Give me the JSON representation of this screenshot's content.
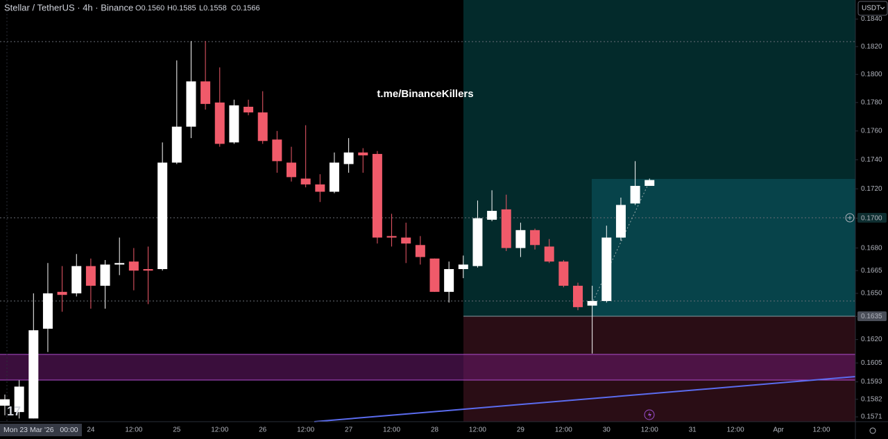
{
  "chart_data": {
    "type": "candlestick",
    "title": "Stellar / TetherUS · 4h · Binance",
    "ohlc_legend": [
      "O0.1560",
      "H0.1585",
      "L0.1558",
      "C0.1566"
    ],
    "watermark": "t.me/BinanceKillers",
    "currency": "USDT",
    "log_scale": true,
    "up_color": "#ffffff",
    "down_color": "#f05a6a",
    "ylim": [
      0.1568,
      0.1854
    ],
    "yticks": [
      {
        "value": 0.184,
        "label": "0.1840"
      },
      {
        "value": 0.182,
        "label": "0.1820"
      },
      {
        "value": 0.18,
        "label": "0.1800"
      },
      {
        "value": 0.178,
        "label": "0.1780"
      },
      {
        "value": 0.176,
        "label": "0.1760"
      },
      {
        "value": 0.174,
        "label": "0.1740"
      },
      {
        "value": 0.172,
        "label": "0.1720"
      },
      {
        "value": 0.17,
        "label": "0.1700"
      },
      {
        "value": 0.168,
        "label": "0.1680"
      },
      {
        "value": 0.1665,
        "label": "0.1665"
      },
      {
        "value": 0.165,
        "label": "0.1650"
      },
      {
        "value": 0.1635,
        "label": "0.1635"
      },
      {
        "value": 0.162,
        "label": "0.1620"
      },
      {
        "value": 0.1605,
        "label": "0.1605"
      },
      {
        "value": 0.1593,
        "label": "0.1593"
      },
      {
        "value": 0.1582,
        "label": "0.1582"
      },
      {
        "value": 0.1571,
        "label": "0.1571"
      }
    ],
    "crosshair_x_label": "Mon 23 Mar '26   00:00",
    "xtick_labels": [
      "24",
      "12:00",
      "25",
      "12:00",
      "26",
      "12:00",
      "27",
      "12:00",
      "28",
      "12:00",
      "29",
      "12:00",
      "30",
      "12:00",
      "31",
      "12:00",
      "Apr",
      "12:00"
    ],
    "open": [
      0.1578,
      0.1574,
      0.157,
      0.1627,
      0.1651,
      0.165,
      0.1668,
      0.1655,
      0.1669,
      0.1671,
      0.1666,
      0.1666,
      0.1738,
      0.1763,
      0.1795,
      0.178,
      0.1752,
      0.1777,
      0.1773,
      0.1754,
      0.1738,
      0.1727,
      0.1723,
      0.1718,
      0.1737,
      0.1745,
      0.1744,
      0.1688,
      0.1687,
      0.1682,
      0.1673,
      0.1651,
      0.1666,
      0.1668,
      0.1699,
      0.1706,
      0.168,
      0.1692,
      0.1681,
      0.1671,
      0.1655,
      0.1642,
      0.1645,
      0.1687,
      0.171,
      0.1722
    ],
    "high": [
      0.1585,
      0.1594,
      0.165,
      0.167,
      0.1668,
      0.1676,
      0.1673,
      0.1672,
      0.1687,
      0.168,
      0.1681,
      0.1752,
      0.181,
      0.1824,
      0.1824,
      0.1805,
      0.1782,
      0.1782,
      0.1788,
      0.176,
      0.1749,
      0.1764,
      0.173,
      0.1745,
      0.1755,
      0.1748,
      0.1746,
      0.1703,
      0.1697,
      0.1688,
      0.1673,
      0.1671,
      0.1675,
      0.1712,
      0.1719,
      0.1716,
      0.1697,
      0.1693,
      0.1686,
      0.1672,
      0.1657,
      0.1655,
      0.1695,
      0.1714,
      0.1739,
      0.1727
    ],
    "low": [
      0.1572,
      0.157,
      0.157,
      0.1612,
      0.1638,
      0.1648,
      0.164,
      0.164,
      0.1662,
      0.1652,
      0.1643,
      0.1665,
      0.1737,
      0.1755,
      0.1775,
      0.1749,
      0.1751,
      0.1771,
      0.1751,
      0.1731,
      0.1725,
      0.1721,
      0.1711,
      0.1717,
      0.1731,
      0.1731,
      0.1683,
      0.1681,
      0.167,
      0.1669,
      0.1651,
      0.1644,
      0.166,
      0.1667,
      0.1698,
      0.1678,
      0.1674,
      0.1679,
      0.167,
      0.1654,
      0.1639,
      0.1611,
      0.1644,
      0.1685,
      0.1709,
      0.1722
    ],
    "close": [
      0.1582,
      0.159,
      0.1626,
      0.165,
      0.1649,
      0.1668,
      0.1655,
      0.1669,
      0.167,
      0.1665,
      0.1665,
      0.1738,
      0.1763,
      0.1795,
      0.1779,
      0.1751,
      0.1778,
      0.1773,
      0.1753,
      0.1739,
      0.1728,
      0.1723,
      0.1718,
      0.1738,
      0.1745,
      0.1743,
      0.1687,
      0.1687,
      0.1683,
      0.1674,
      0.1651,
      0.1666,
      0.1669,
      0.17,
      0.1705,
      0.168,
      0.1692,
      0.1682,
      0.1671,
      0.1655,
      0.1641,
      0.1645,
      0.1687,
      0.1709,
      0.1722,
      0.1726
    ]
  }
}
